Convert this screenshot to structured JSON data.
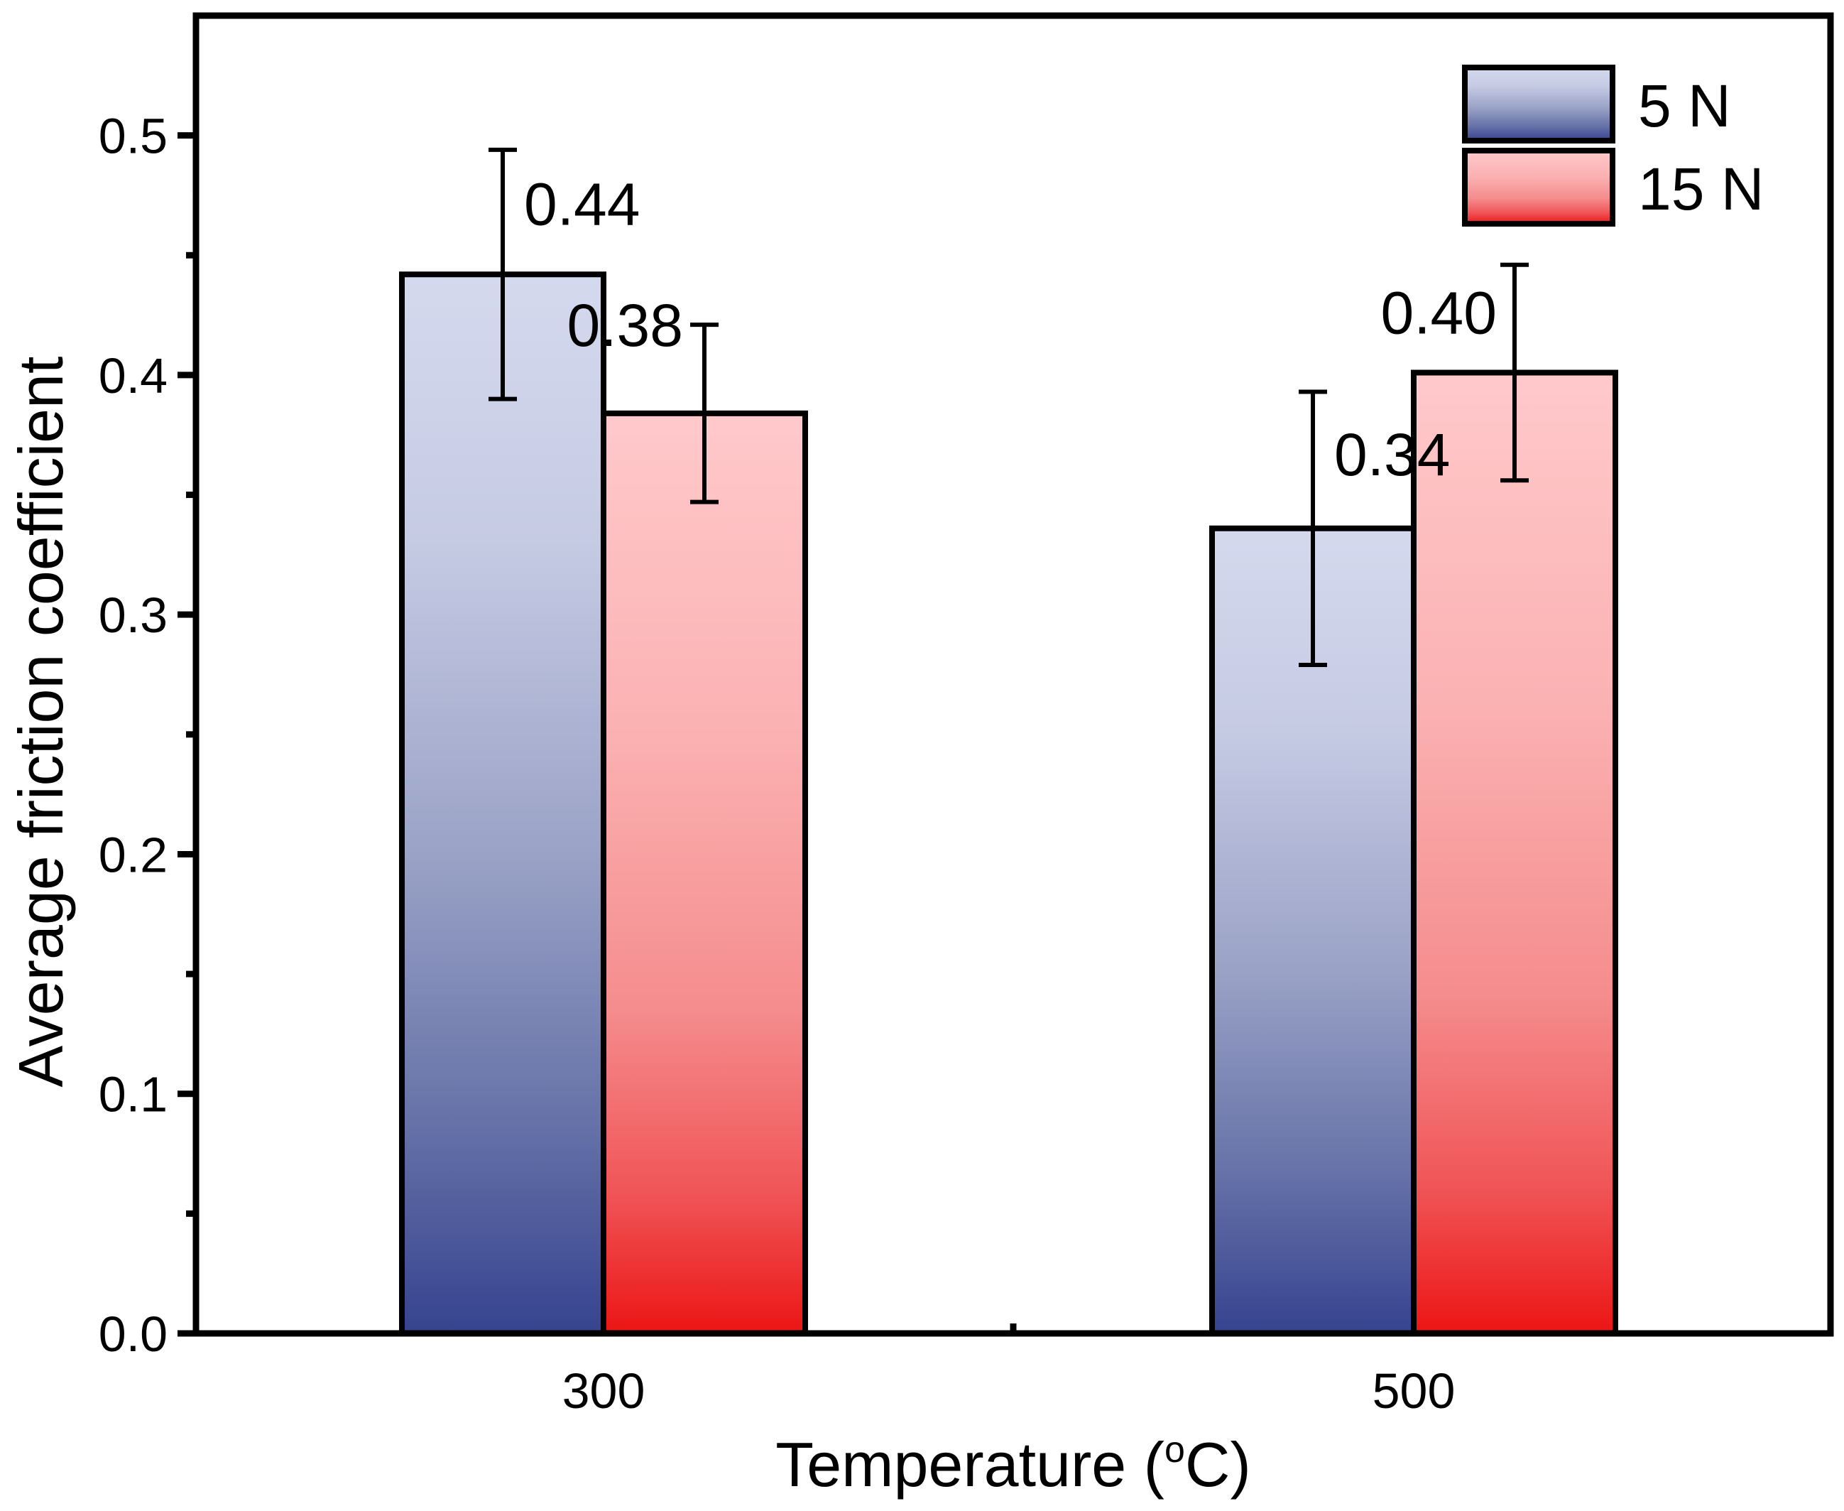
{
  "chart_data": {
    "type": "bar",
    "title": "",
    "xlabel": "Temperature (",
    "xlabel_sup": "o",
    "xlabel_end": "C)",
    "ylabel": "Average friction coefficient",
    "categories": [
      "300",
      "500"
    ],
    "series": [
      {
        "name": "5 N",
        "values": [
          0.442,
          0.336
        ],
        "errors": [
          0.052,
          0.057
        ],
        "labels": [
          "0.44",
          "0.34"
        ],
        "gradient": [
          "#d4d9ee",
          "#36438f"
        ]
      },
      {
        "name": "15 N",
        "values": [
          0.384,
          0.401
        ],
        "errors": [
          0.037,
          0.045
        ],
        "labels": [
          "0.38",
          "0.40"
        ],
        "gradient": [
          "#ffc9cb",
          "#ec1515"
        ]
      }
    ],
    "ylim": [
      0,
      0.55
    ],
    "yticks": [
      "0.0",
      "0.1",
      "0.2",
      "0.3",
      "0.4",
      "0.5"
    ],
    "legend_position": "top-right",
    "grid": false
  }
}
